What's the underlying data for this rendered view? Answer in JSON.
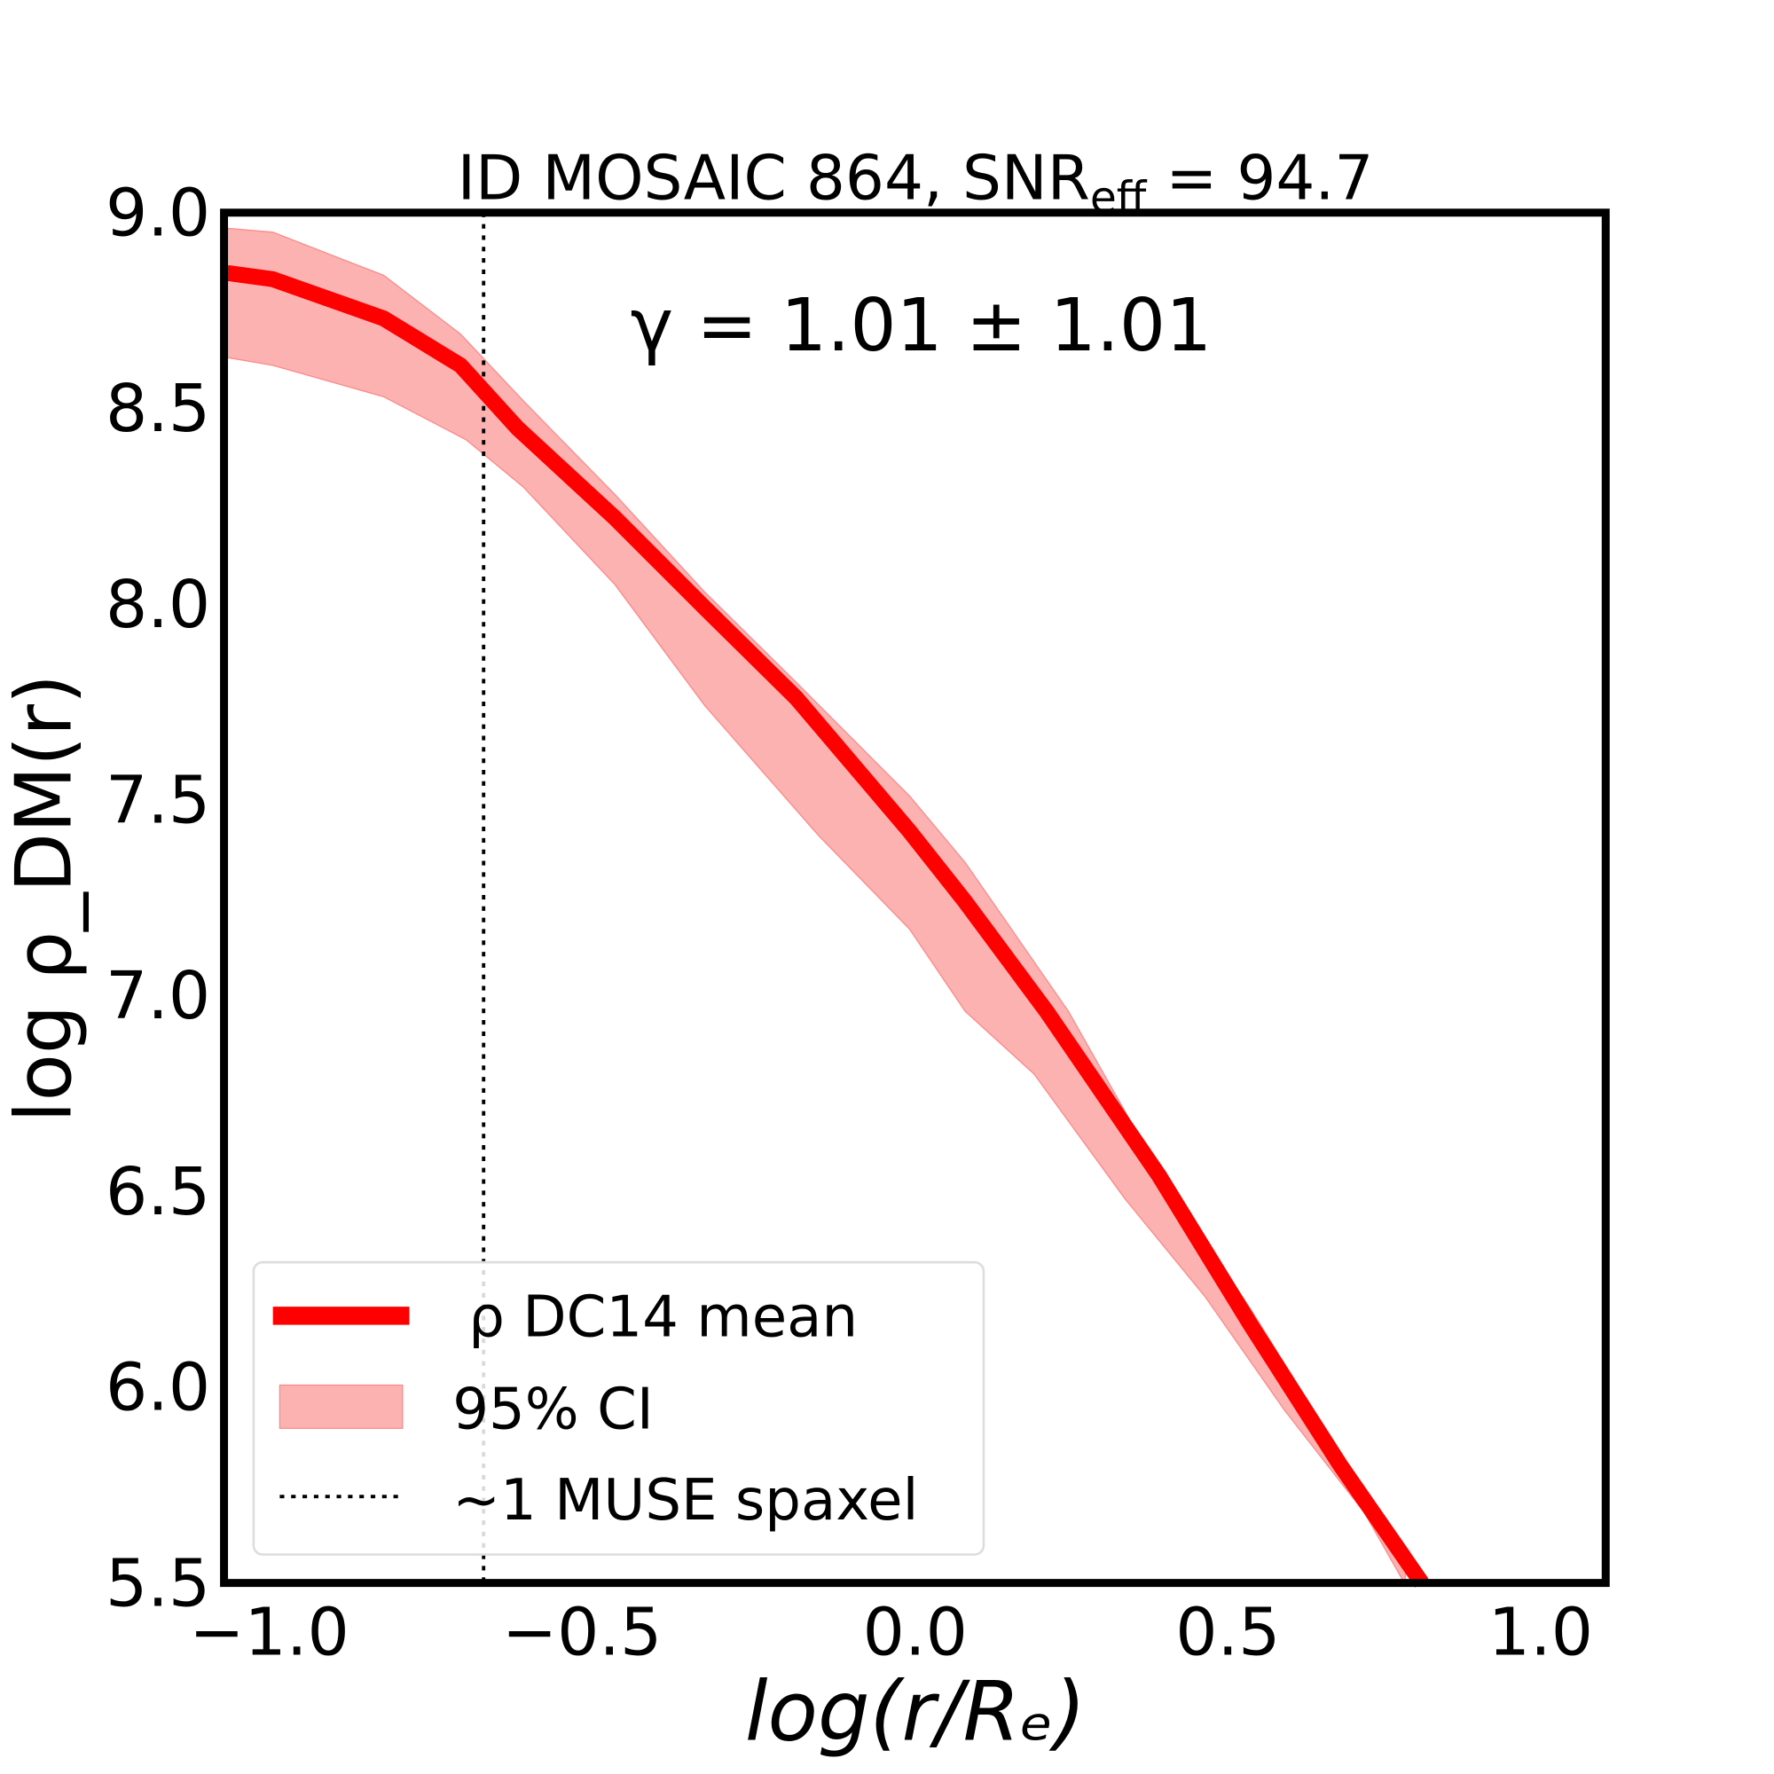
{
  "chart_data": {
    "type": "line",
    "title_prefix": "ID MOSAIC 864, SNR",
    "title_sub": "eff",
    "title_suffix": " = 94.7",
    "annotation": "γ = 1.01 ± 1.01",
    "xlabel": "log(r/Rₑ)",
    "ylabel": "log ρ_DM(r)",
    "xlim": [
      -1.105,
      1.104
    ],
    "ylim": [
      5.5,
      9.0
    ],
    "xticks": [
      -1.0,
      -0.5,
      0.0,
      0.5,
      1.0
    ],
    "xtick_labels": [
      "−1.0",
      "−0.5",
      "0.0",
      "0.5",
      "1.0"
    ],
    "yticks": [
      5.5,
      6.0,
      6.5,
      7.0,
      7.5,
      8.0,
      8.5,
      9.0
    ],
    "ytick_labels": [
      "5.5",
      "6.0",
      "6.5",
      "7.0",
      "7.5",
      "8.0",
      "8.5",
      "9.0"
    ],
    "grid": false,
    "vline_x": -0.69,
    "series": [
      {
        "name": "ρ DC14 mean",
        "color": "#ff0000",
        "x": [
          -1.1,
          -1.027,
          -0.85,
          -0.727,
          -0.636,
          -0.48,
          -0.336,
          -0.19,
          -0.009,
          0.08,
          0.21,
          0.39,
          0.536,
          0.68,
          0.81
        ],
        "y": [
          8.846,
          8.83,
          8.73,
          8.61,
          8.45,
          8.22,
          7.99,
          7.76,
          7.42,
          7.24,
          6.96,
          6.54,
          6.16,
          5.8,
          5.5
        ]
      }
    ],
    "band": {
      "name": "95% CI",
      "color": "#fdb2b2",
      "upper_x": [
        -1.1,
        -1.027,
        -0.85,
        -0.727,
        -0.627,
        -0.48,
        -0.336,
        -0.19,
        -0.009,
        0.08,
        0.245,
        0.39,
        0.536,
        0.68,
        0.79
      ],
      "upper_y": [
        8.96,
        8.95,
        8.84,
        8.69,
        8.52,
        8.28,
        8.03,
        7.8,
        7.51,
        7.34,
        6.96,
        6.55,
        6.2,
        5.83,
        5.58
      ],
      "lower_x": [
        -1.1,
        -1.027,
        -0.85,
        -0.718,
        -0.627,
        -0.48,
        -0.336,
        -0.155,
        -0.009,
        0.08,
        0.19,
        0.336,
        0.464,
        0.591,
        0.718,
        0.782
      ],
      "lower_y": [
        8.63,
        8.61,
        8.53,
        8.42,
        8.3,
        8.05,
        7.74,
        7.41,
        7.17,
        6.96,
        6.8,
        6.48,
        6.23,
        5.94,
        5.68,
        5.5
      ]
    },
    "legend": {
      "placement": "lower-left",
      "entries": [
        "ρ DC14 mean",
        "95% CI",
        "~1 MUSE spaxel"
      ]
    }
  }
}
